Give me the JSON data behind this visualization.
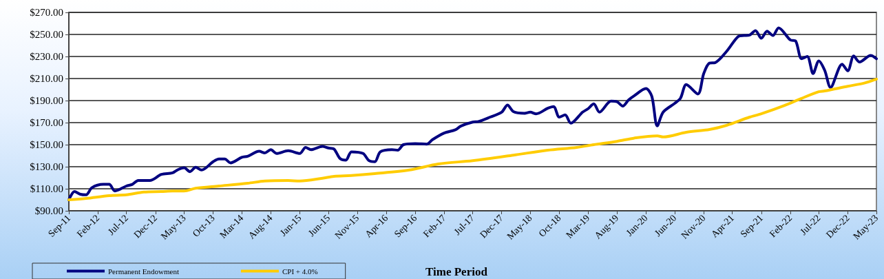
{
  "chart_data": {
    "type": "line",
    "xlabel": "Time Period",
    "legend": "bottom left",
    "grid": "y",
    "marker": "none",
    "line_style": "solid",
    "xlim": [
      "2011-09",
      "2023-05"
    ],
    "xticks": [
      {
        "value": "2011-09",
        "label": "Sep-11"
      },
      {
        "value": "2012-02",
        "label": "Feb-12"
      },
      {
        "value": "2012-07",
        "label": "Jul-12"
      },
      {
        "value": "2012-12",
        "label": "Dec-12"
      },
      {
        "value": "2013-05",
        "label": "May-13"
      },
      {
        "value": "2013-10",
        "label": "Oct-13"
      },
      {
        "value": "2014-03",
        "label": "Mar-14"
      },
      {
        "value": "2014-08",
        "label": "Aug-14"
      },
      {
        "value": "2015-01",
        "label": "Jan-15"
      },
      {
        "value": "2015-06",
        "label": "Jun-15"
      },
      {
        "value": "2015-11",
        "label": "Nov-15"
      },
      {
        "value": "2016-04",
        "label": "Apr-16"
      },
      {
        "value": "2016-09",
        "label": "Sep-16"
      },
      {
        "value": "2017-02",
        "label": "Feb-17"
      },
      {
        "value": "2017-07",
        "label": "Jul-17"
      },
      {
        "value": "2017-12",
        "label": "Dec-17"
      },
      {
        "value": "2018-05",
        "label": "May-18"
      },
      {
        "value": "2018-10",
        "label": "Oct-18"
      },
      {
        "value": "2019-03",
        "label": "Mar-19"
      },
      {
        "value": "2019-08",
        "label": "Aug-19"
      },
      {
        "value": "2020-01",
        "label": "Jan-20"
      },
      {
        "value": "2020-06",
        "label": "Jun-20"
      },
      {
        "value": "2020-11",
        "label": "Nov-20"
      },
      {
        "value": "2021-04",
        "label": "Apr-21"
      },
      {
        "value": "2021-09",
        "label": "Sep-21"
      },
      {
        "value": "2022-02",
        "label": "Feb-22"
      },
      {
        "value": "2022-07",
        "label": "Jul-22"
      },
      {
        "value": "2022-12",
        "label": "Dec-22"
      },
      {
        "value": "2023-05",
        "label": "May-23"
      }
    ],
    "ylim": [
      90,
      270
    ],
    "yticks": [
      {
        "value": 90,
        "label": "$90.00"
      },
      {
        "value": 110,
        "label": "$110.00"
      },
      {
        "value": 130,
        "label": "$130.00"
      },
      {
        "value": 150,
        "label": "$150.00"
      },
      {
        "value": 170,
        "label": "$170.00"
      },
      {
        "value": 190,
        "label": "$190.00"
      },
      {
        "value": 210,
        "label": "$210.00"
      },
      {
        "value": 230,
        "label": "$230.00"
      },
      {
        "value": 250,
        "label": "$250.00"
      },
      {
        "value": 270,
        "label": "$270.00"
      }
    ],
    "series": [
      {
        "name": "Permanent Endowment",
        "color": "#000080",
        "x": [
          "2011-09",
          "2011-10",
          "2011-11",
          "2011-12",
          "2012-01",
          "2012-03",
          "2012-04",
          "2012-05",
          "2012-07",
          "2012-08",
          "2012-09",
          "2012-11",
          "2013-01",
          "2013-03",
          "2013-04",
          "2013-05",
          "2013-06",
          "2013-07",
          "2013-08",
          "2013-10",
          "2013-11",
          "2013-12",
          "2014-01",
          "2014-03",
          "2014-04",
          "2014-06",
          "2014-07",
          "2014-08",
          "2014-09",
          "2014-11",
          "2015-01",
          "2015-02",
          "2015-03",
          "2015-05",
          "2015-06",
          "2015-07",
          "2015-08",
          "2015-09",
          "2015-10",
          "2015-12",
          "2016-01",
          "2016-02",
          "2016-03",
          "2016-05",
          "2016-06",
          "2016-07",
          "2016-09",
          "2016-11",
          "2016-12",
          "2017-02",
          "2017-04",
          "2017-05",
          "2017-07",
          "2017-08",
          "2017-10",
          "2017-12",
          "2018-01",
          "2018-02",
          "2018-04",
          "2018-05",
          "2018-06",
          "2018-08",
          "2018-09",
          "2018-10",
          "2018-11",
          "2018-12",
          "2019-02",
          "2019-03",
          "2019-04",
          "2019-05",
          "2019-07",
          "2019-08",
          "2019-09",
          "2019-10",
          "2019-11",
          "2020-01",
          "2020-02",
          "2020-03",
          "2020-04",
          "2020-06",
          "2020-07",
          "2020-08",
          "2020-10",
          "2020-11",
          "2020-12",
          "2021-01",
          "2021-03",
          "2021-05",
          "2021-06",
          "2021-07",
          "2021-08",
          "2021-09",
          "2021-10",
          "2021-11",
          "2021-12",
          "2022-02",
          "2022-03",
          "2022-04",
          "2022-05",
          "2022-06",
          "2022-07",
          "2022-08",
          "2022-09",
          "2022-11",
          "2022-12",
          "2023-01",
          "2023-02",
          "2023-04",
          "2023-05"
        ],
        "values": [
          100,
          107.5,
          105,
          104.5,
          111,
          114,
          114,
          108,
          112.5,
          114,
          117.5,
          117.5,
          123,
          124.5,
          127.5,
          129,
          125.5,
          129.5,
          127,
          134.5,
          137,
          137,
          133.5,
          138.5,
          139.5,
          144,
          142.5,
          145.5,
          142,
          144.5,
          142,
          147.5,
          145.5,
          148.5,
          147,
          146,
          137.5,
          136,
          143.5,
          142,
          135.5,
          134.5,
          143.5,
          145.5,
          145,
          150,
          151,
          150.5,
          154.5,
          160.5,
          163.5,
          167,
          170.5,
          171,
          175,
          179.5,
          186,
          180,
          178.5,
          179.5,
          178,
          183,
          184.5,
          175,
          177,
          169.5,
          179.5,
          182.5,
          187,
          179.5,
          189.5,
          189,
          185,
          190.5,
          194.5,
          201,
          194,
          167,
          179.5,
          187.5,
          192,
          204.5,
          196,
          214.5,
          224,
          224.5,
          234.5,
          248,
          249,
          249.5,
          253.5,
          246.5,
          253,
          249,
          256,
          245,
          244,
          228,
          230,
          214.5,
          226,
          217.5,
          202,
          223,
          217,
          230.5,
          225,
          231,
          228
        ]
      },
      {
        "name": "CPI + 4.0%",
        "color": "#ffcc00",
        "x": [
          "2011-09",
          "2011-12",
          "2012-04",
          "2012-07",
          "2012-10",
          "2013-01",
          "2013-03",
          "2013-05",
          "2013-07",
          "2013-11",
          "2014-04",
          "2014-07",
          "2014-11",
          "2015-01",
          "2015-05",
          "2015-07",
          "2015-10",
          "2016-02",
          "2016-08",
          "2017-01",
          "2017-07",
          "2018-02",
          "2018-08",
          "2019-01",
          "2019-04",
          "2019-08",
          "2019-11",
          "2020-03",
          "2020-04",
          "2020-08",
          "2020-12",
          "2021-03",
          "2021-07",
          "2021-09",
          "2022-01",
          "2022-04",
          "2022-07",
          "2022-08",
          "2022-12",
          "2023-03",
          "2023-05"
        ],
        "values": [
          100,
          101.25,
          103.75,
          104.5,
          107,
          107.5,
          108,
          108,
          110.5,
          112.5,
          115,
          117,
          117.5,
          117,
          119.5,
          121.25,
          122,
          123.75,
          127,
          132.5,
          135.5,
          140.5,
          145,
          147.5,
          150,
          153,
          156,
          158,
          157,
          161.25,
          163.75,
          167.5,
          175,
          178,
          185.5,
          192,
          198,
          198.75,
          203,
          206,
          209.5
        ]
      }
    ]
  }
}
